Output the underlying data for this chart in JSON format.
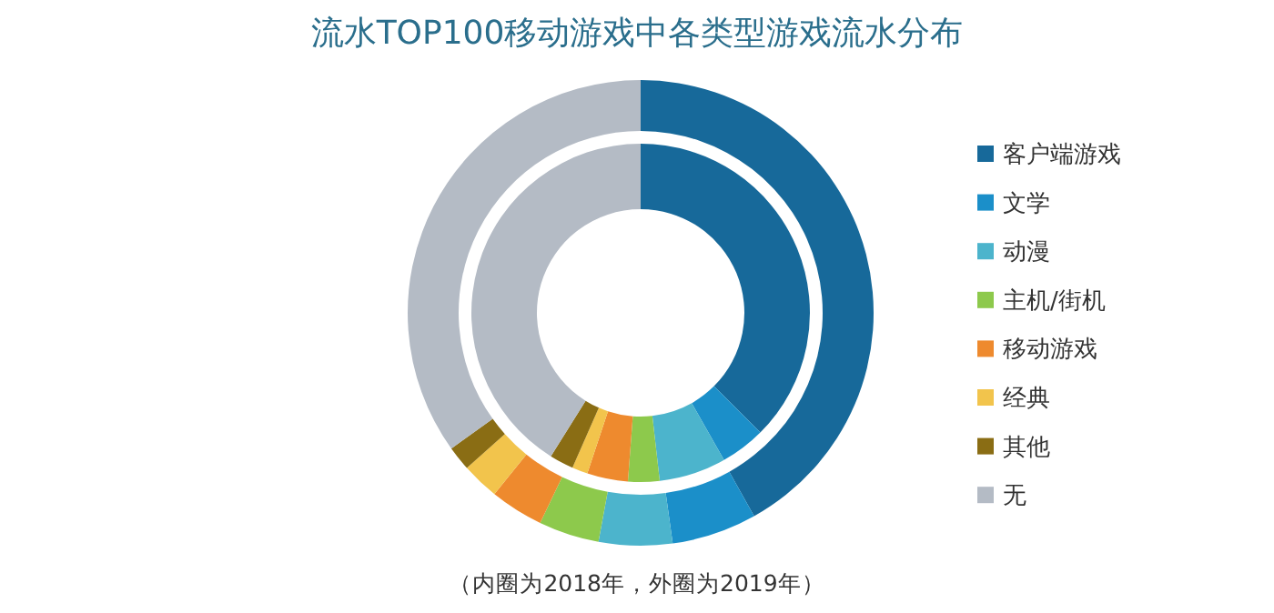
{
  "chart_data": {
    "type": "donut",
    "title": "流水TOP100移动游戏中各类型游戏流水分布",
    "categories": [
      "客户端游戏",
      "文学",
      "动漫",
      "主机/街机",
      "移动游戏",
      "经典",
      "其他",
      "无"
    ],
    "colors": [
      "#17699a",
      "#1b8fc9",
      "#4cb4cc",
      "#8dc94c",
      "#ee8a2e",
      "#f2c44c",
      "#8a6d14",
      "#b4bbc5"
    ],
    "series": [
      {
        "values": [
          37.5,
          4.3,
          6.4,
          3.0,
          3.9,
          1.5,
          2.3,
          41.1
        ]
      },
      {
        "values": [
          41.9,
          5.9,
          5.1,
          4.2,
          3.7,
          2.6,
          1.7,
          34.9
        ]
      }
    ],
    "legend": "right",
    "annotations": [
      "（内圈为2018年，外圈为2019年）"
    ]
  }
}
